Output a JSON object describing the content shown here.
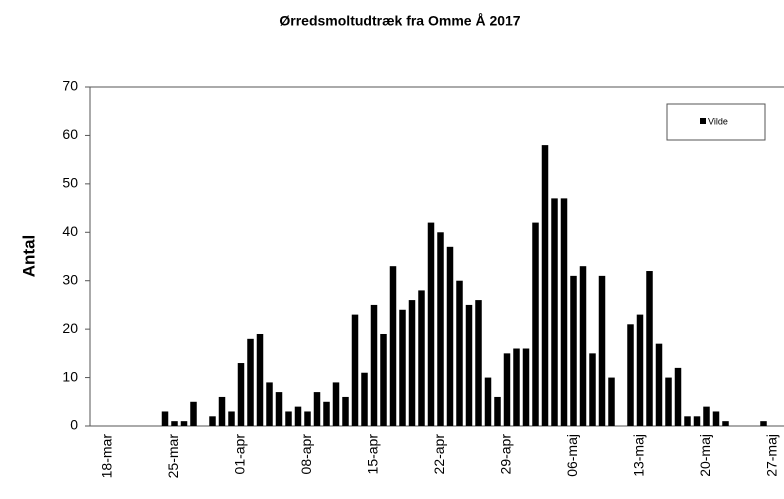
{
  "chart_data": {
    "type": "bar",
    "title": "Ørredsmoltudtræk fra Omme Å 2017",
    "y_label": "Antal",
    "categories": [
      "18-mar",
      null,
      null,
      null,
      null,
      null,
      null,
      "25-mar",
      null,
      null,
      null,
      null,
      null,
      null,
      "01-apr",
      null,
      null,
      null,
      null,
      null,
      null,
      "08-apr",
      null,
      null,
      null,
      null,
      null,
      null,
      "15-apr",
      null,
      null,
      null,
      null,
      null,
      null,
      "22-apr",
      null,
      null,
      null,
      null,
      null,
      null,
      "29-apr",
      null,
      null,
      null,
      null,
      null,
      null,
      "06-maj",
      null,
      null,
      null,
      null,
      null,
      null,
      "13-maj",
      null,
      null,
      null,
      null,
      null,
      null,
      "20-maj",
      null,
      null,
      null,
      null,
      null,
      null,
      "27-maj"
    ],
    "series": [
      {
        "name": "Vilde",
        "color": "#000000",
        "values": [
          0,
          0,
          0,
          0,
          0,
          0,
          3,
          1,
          1,
          5,
          0,
          2,
          6,
          3,
          13,
          18,
          19,
          9,
          7,
          3,
          4,
          3,
          7,
          5,
          9,
          6,
          23,
          11,
          25,
          19,
          33,
          24,
          26,
          28,
          42,
          40,
          37,
          30,
          25,
          26,
          10,
          6,
          15,
          16,
          16,
          42,
          58,
          47,
          47,
          31,
          33,
          15,
          31,
          10,
          0,
          21,
          23,
          32,
          17,
          10,
          12,
          2,
          2,
          4,
          3,
          1,
          0,
          0,
          0,
          1,
          0
        ]
      }
    ],
    "ylim": [
      0,
      70
    ],
    "yticks": [
      0,
      10,
      20,
      30,
      40,
      50,
      60,
      70
    ],
    "grid": false,
    "legend": "upper right"
  }
}
